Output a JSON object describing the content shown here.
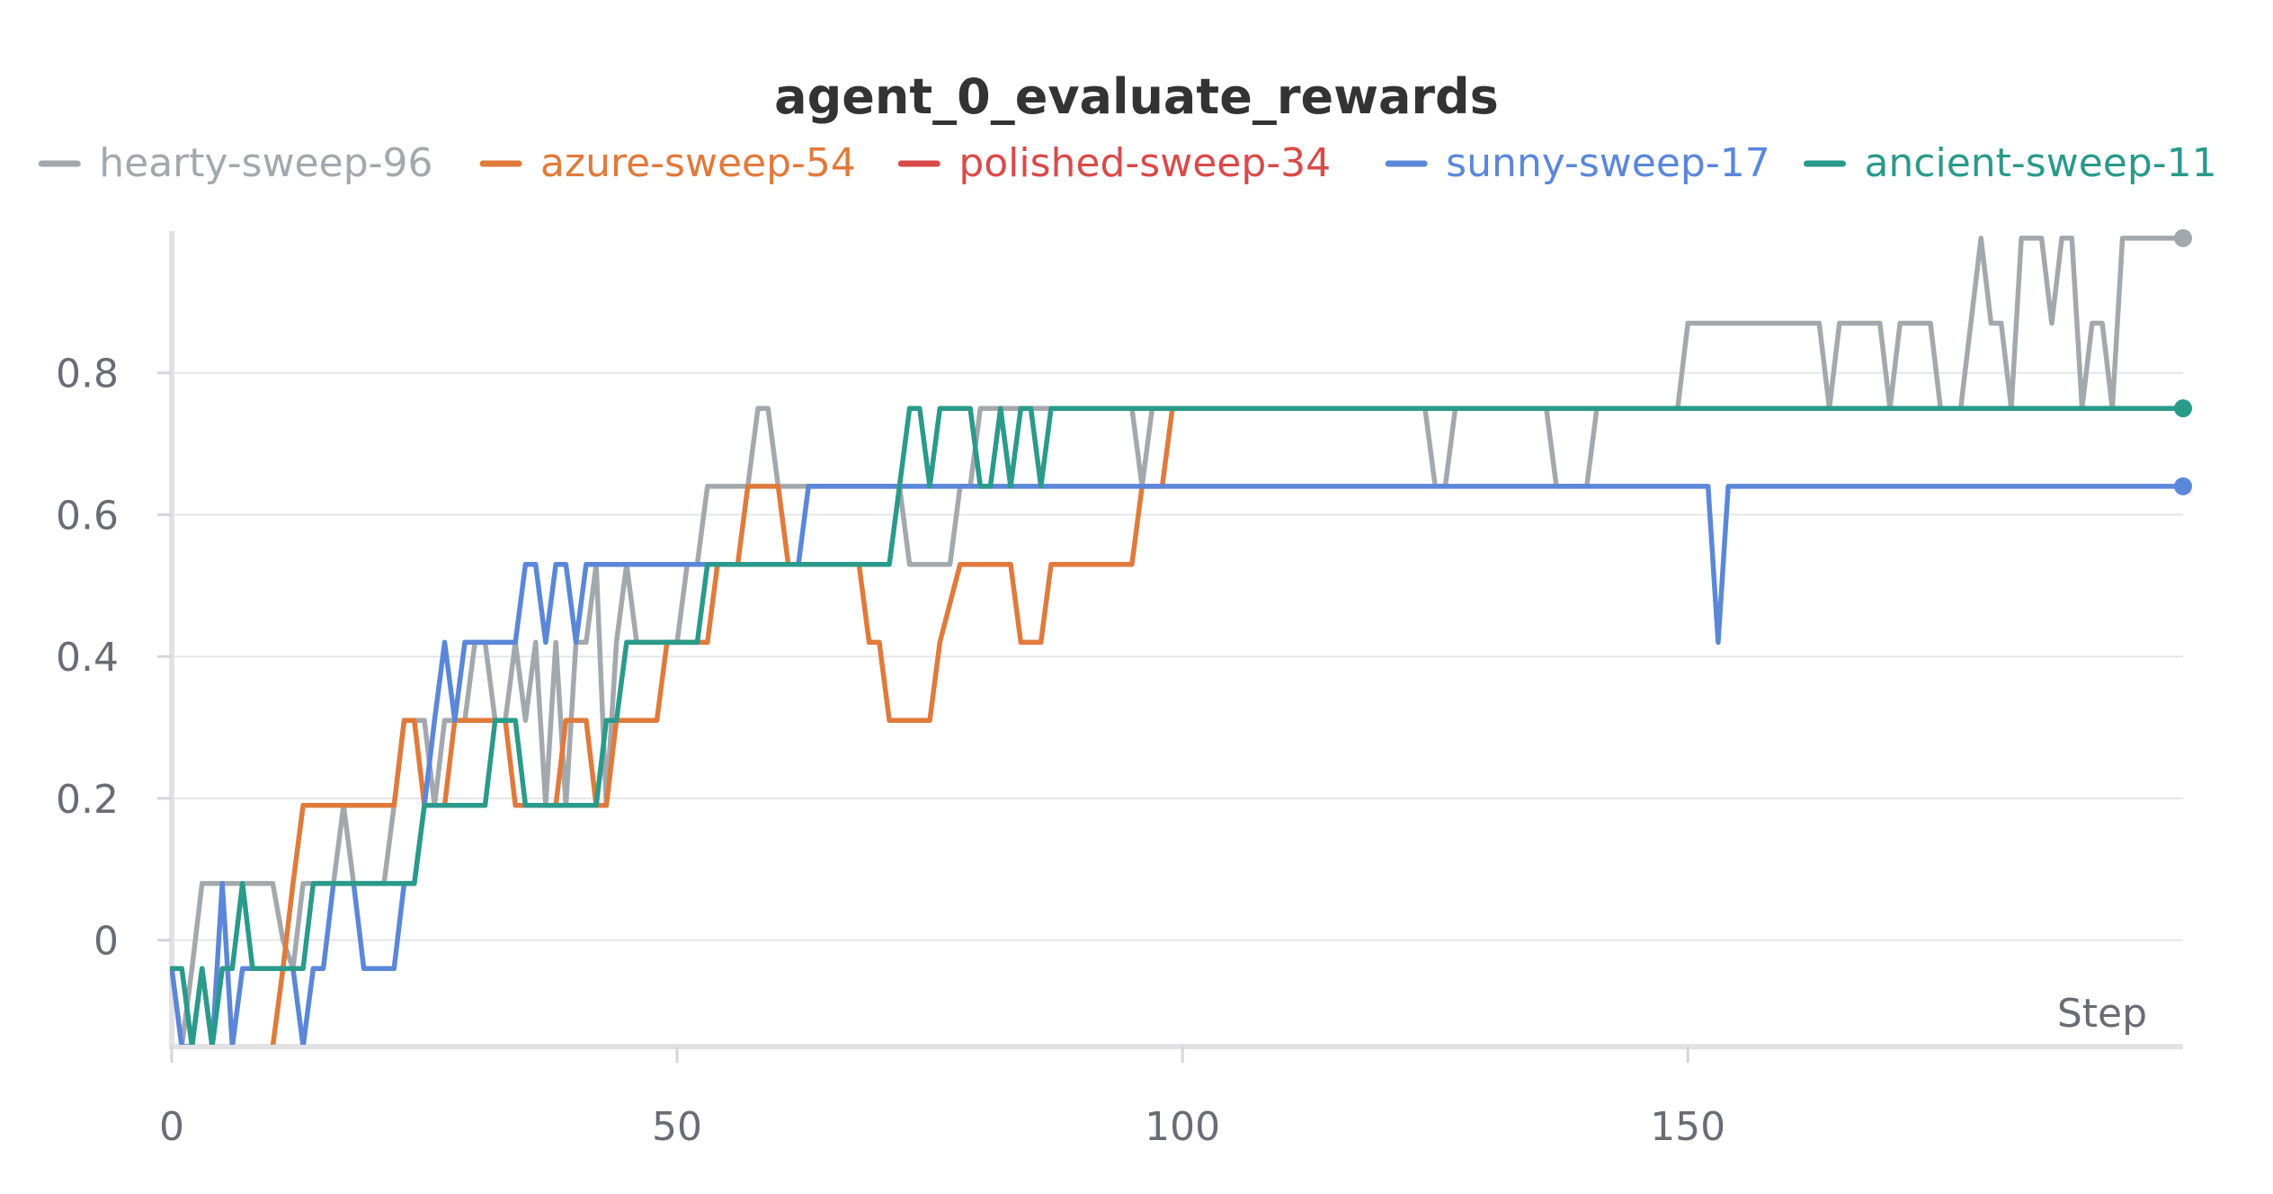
{
  "chart_data": {
    "type": "line",
    "title": "agent_0_evaluate_rewards",
    "xlabel": "Step",
    "ylabel": "",
    "xlim": [
      0,
      199
    ],
    "ylim": [
      -0.15,
      1.0
    ],
    "x_ticks": [
      0,
      50,
      100,
      150
    ],
    "x_tick_labels": [
      "0",
      "50",
      "100",
      "150"
    ],
    "y_ticks": [
      0,
      0.2,
      0.4,
      0.6,
      0.8
    ],
    "y_tick_labels": [
      "0",
      "0.2",
      "0.4",
      "0.6",
      "0.8"
    ],
    "grid": true,
    "legend_position": "top",
    "series": [
      {
        "name": "hearty-sweep-96",
        "color": "#a3a8ad",
        "points": [
          [
            0,
            -0.04
          ],
          [
            1,
            -0.15
          ],
          [
            2,
            -0.04
          ],
          [
            3,
            0.08
          ],
          [
            10,
            0.08
          ],
          [
            11,
            0.0
          ],
          [
            12,
            -0.04
          ],
          [
            13,
            0.08
          ],
          [
            16,
            0.08
          ],
          [
            17,
            0.19
          ],
          [
            18,
            0.08
          ],
          [
            21,
            0.08
          ],
          [
            22,
            0.19
          ],
          [
            23,
            0.31
          ],
          [
            25,
            0.31
          ],
          [
            26,
            0.19
          ],
          [
            27,
            0.31
          ],
          [
            29,
            0.31
          ],
          [
            30,
            0.42
          ],
          [
            31,
            0.42
          ],
          [
            32,
            0.31
          ],
          [
            33,
            0.31
          ],
          [
            34,
            0.42
          ],
          [
            35,
            0.31
          ],
          [
            36,
            0.42
          ],
          [
            37,
            0.19
          ],
          [
            38,
            0.42
          ],
          [
            39,
            0.19
          ],
          [
            40,
            0.42
          ],
          [
            41,
            0.42
          ],
          [
            42,
            0.53
          ],
          [
            43,
            0.19
          ],
          [
            44,
            0.42
          ],
          [
            45,
            0.53
          ],
          [
            46,
            0.42
          ],
          [
            50,
            0.42
          ],
          [
            51,
            0.53
          ],
          [
            52,
            0.53
          ],
          [
            53,
            0.64
          ],
          [
            57,
            0.64
          ],
          [
            58,
            0.75
          ],
          [
            59,
            0.75
          ],
          [
            60,
            0.64
          ],
          [
            72,
            0.64
          ],
          [
            73,
            0.53
          ],
          [
            77,
            0.53
          ],
          [
            78,
            0.64
          ],
          [
            79,
            0.64
          ],
          [
            80,
            0.75
          ],
          [
            95,
            0.75
          ],
          [
            96,
            0.64
          ],
          [
            97,
            0.75
          ],
          [
            124,
            0.75
          ],
          [
            125,
            0.64
          ],
          [
            126,
            0.64
          ],
          [
            127,
            0.75
          ],
          [
            136,
            0.75
          ],
          [
            137,
            0.64
          ],
          [
            140,
            0.64
          ],
          [
            141,
            0.75
          ],
          [
            149,
            0.75
          ],
          [
            150,
            0.87
          ],
          [
            160,
            0.87
          ],
          [
            161,
            0.87
          ],
          [
            162,
            0.87
          ],
          [
            163,
            0.87
          ],
          [
            164,
            0.75
          ],
          [
            165,
            0.87
          ],
          [
            169,
            0.87
          ],
          [
            170,
            0.75
          ],
          [
            171,
            0.87
          ],
          [
            174,
            0.87
          ],
          [
            175,
            0.75
          ],
          [
            177,
            0.75
          ],
          [
            179,
            0.99
          ],
          [
            180,
            0.87
          ],
          [
            181,
            0.87
          ],
          [
            182,
            0.75
          ],
          [
            183,
            0.99
          ],
          [
            185,
            0.99
          ],
          [
            186,
            0.87
          ],
          [
            187,
            0.99
          ],
          [
            188,
            0.99
          ],
          [
            189,
            0.75
          ],
          [
            190,
            0.87
          ],
          [
            191,
            0.87
          ],
          [
            192,
            0.75
          ],
          [
            193,
            0.99
          ],
          [
            199,
            0.99
          ]
        ]
      },
      {
        "name": "azure-sweep-54",
        "color": "#e07a3c",
        "points": [
          [
            10,
            -0.15
          ],
          [
            11,
            -0.04
          ],
          [
            12,
            0.08
          ],
          [
            13,
            0.19
          ],
          [
            22,
            0.19
          ],
          [
            23,
            0.31
          ],
          [
            24,
            0.31
          ],
          [
            25,
            0.19
          ],
          [
            27,
            0.19
          ],
          [
            28,
            0.31
          ],
          [
            33,
            0.31
          ],
          [
            34,
            0.19
          ],
          [
            38,
            0.19
          ],
          [
            39,
            0.31
          ],
          [
            41,
            0.31
          ],
          [
            42,
            0.19
          ],
          [
            43,
            0.19
          ],
          [
            44,
            0.31
          ],
          [
            48,
            0.31
          ],
          [
            49,
            0.42
          ],
          [
            53,
            0.42
          ],
          [
            54,
            0.53
          ],
          [
            56,
            0.53
          ],
          [
            57,
            0.64
          ],
          [
            60,
            0.64
          ],
          [
            61,
            0.53
          ],
          [
            68,
            0.53
          ],
          [
            69,
            0.42
          ],
          [
            70,
            0.42
          ],
          [
            71,
            0.31
          ],
          [
            75,
            0.31
          ],
          [
            76,
            0.42
          ],
          [
            78,
            0.53
          ],
          [
            83,
            0.53
          ],
          [
            84,
            0.42
          ],
          [
            86,
            0.42
          ],
          [
            87,
            0.53
          ],
          [
            95,
            0.53
          ],
          [
            96,
            0.64
          ],
          [
            97,
            0.64
          ],
          [
            98,
            0.64
          ],
          [
            99,
            0.75
          ]
        ]
      },
      {
        "name": "polished-sweep-34",
        "color": "#d94a4a",
        "points": []
      },
      {
        "name": "sunny-sweep-17",
        "color": "#5b87d9",
        "points": [
          [
            0,
            -0.04
          ],
          [
            1,
            -0.15
          ],
          [
            2,
            -0.15
          ],
          [
            3,
            -0.04
          ],
          [
            4,
            -0.15
          ],
          [
            5,
            0.08
          ],
          [
            6,
            -0.15
          ],
          [
            7,
            -0.04
          ],
          [
            12,
            -0.04
          ],
          [
            13,
            -0.15
          ],
          [
            14,
            -0.04
          ],
          [
            15,
            -0.04
          ],
          [
            16,
            0.08
          ],
          [
            18,
            0.08
          ],
          [
            19,
            -0.04
          ],
          [
            22,
            -0.04
          ],
          [
            23,
            0.08
          ],
          [
            24,
            0.08
          ],
          [
            25,
            0.19
          ],
          [
            26,
            0.31
          ],
          [
            27,
            0.42
          ],
          [
            28,
            0.31
          ],
          [
            29,
            0.42
          ],
          [
            34,
            0.42
          ],
          [
            35,
            0.53
          ],
          [
            36,
            0.53
          ],
          [
            37,
            0.42
          ],
          [
            38,
            0.53
          ],
          [
            39,
            0.53
          ],
          [
            40,
            0.42
          ],
          [
            41,
            0.53
          ],
          [
            45,
            0.53
          ],
          [
            46,
            0.53
          ],
          [
            55,
            0.53
          ],
          [
            62,
            0.53
          ],
          [
            63,
            0.64
          ],
          [
            152,
            0.64
          ],
          [
            153,
            0.42
          ],
          [
            154,
            0.64
          ],
          [
            199,
            0.64
          ]
        ]
      },
      {
        "name": "ancient-sweep-11",
        "color": "#2a9a8a",
        "points": [
          [
            0,
            -0.04
          ],
          [
            1,
            -0.04
          ],
          [
            2,
            -0.15
          ],
          [
            3,
            -0.04
          ],
          [
            4,
            -0.15
          ],
          [
            5,
            -0.04
          ],
          [
            6,
            -0.04
          ],
          [
            7,
            0.08
          ],
          [
            8,
            -0.04
          ],
          [
            13,
            -0.04
          ],
          [
            14,
            0.08
          ],
          [
            24,
            0.08
          ],
          [
            25,
            0.19
          ],
          [
            31,
            0.19
          ],
          [
            32,
            0.31
          ],
          [
            34,
            0.31
          ],
          [
            35,
            0.19
          ],
          [
            42,
            0.19
          ],
          [
            43,
            0.31
          ],
          [
            44,
            0.31
          ],
          [
            45,
            0.42
          ],
          [
            52,
            0.42
          ],
          [
            53,
            0.53
          ],
          [
            71,
            0.53
          ],
          [
            72,
            0.64
          ],
          [
            73,
            0.75
          ],
          [
            74,
            0.75
          ],
          [
            75,
            0.64
          ],
          [
            76,
            0.75
          ],
          [
            79,
            0.75
          ],
          [
            80,
            0.64
          ],
          [
            81,
            0.64
          ],
          [
            82,
            0.75
          ],
          [
            83,
            0.64
          ],
          [
            84,
            0.75
          ],
          [
            85,
            0.75
          ],
          [
            86,
            0.64
          ],
          [
            87,
            0.75
          ],
          [
            199,
            0.75
          ]
        ]
      }
    ]
  }
}
